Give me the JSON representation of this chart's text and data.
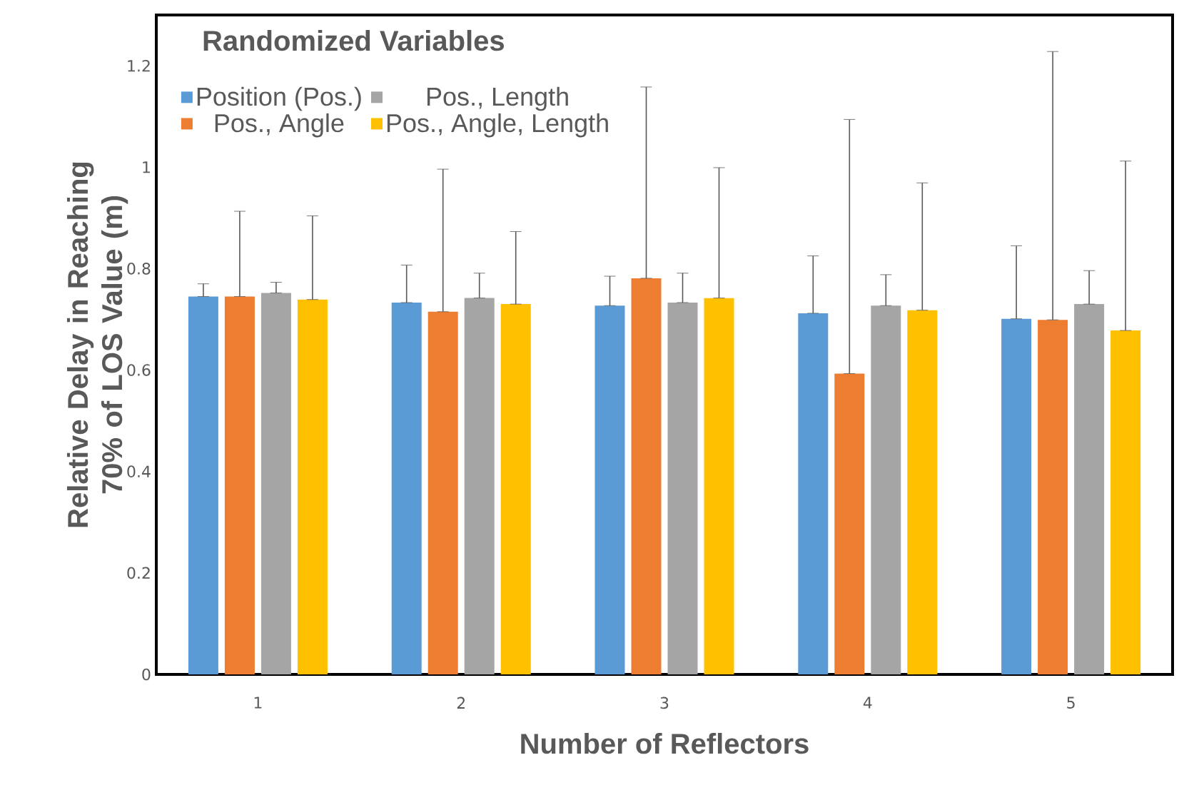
{
  "chart_data": {
    "type": "bar",
    "xlabel": "Number of Reflectors",
    "ylabel": "Relative Delay in Reaching 70% of LOS Value (m)",
    "legend_title": "Randomized Variables",
    "categories": [
      "1",
      "2",
      "3",
      "4",
      "5"
    ],
    "series": [
      {
        "name": "Position (Pos.)",
        "color": "#5b9bd5",
        "values": [
          0.745,
          0.733,
          0.727,
          0.712,
          0.701
        ],
        "errors": [
          [
            0.745,
            0.77
          ],
          [
            0.733,
            0.807
          ],
          [
            0.727,
            0.785
          ],
          [
            0.712,
            0.825
          ],
          [
            0.701,
            0.845
          ]
        ]
      },
      {
        "name": "Pos., Angle",
        "color": "#ed7d31",
        "values": [
          0.745,
          0.715,
          0.781,
          0.593,
          0.699
        ],
        "errors": [
          [
            0.745,
            0.913
          ],
          [
            0.715,
            0.996
          ],
          [
            0.781,
            1.158
          ],
          [
            0.593,
            1.094
          ],
          [
            0.699,
            1.228
          ]
        ]
      },
      {
        "name": "Pos., Length",
        "color": "#a5a5a5",
        "values": [
          0.752,
          0.742,
          0.733,
          0.727,
          0.73
        ],
        "errors": [
          [
            0.752,
            0.773
          ],
          [
            0.742,
            0.791
          ],
          [
            0.733,
            0.791
          ],
          [
            0.727,
            0.788
          ],
          [
            0.73,
            0.796
          ]
        ]
      },
      {
        "name": "Pos., Angle, Length",
        "color": "#ffc000",
        "values": [
          0.739,
          0.73,
          0.742,
          0.718,
          0.678
        ],
        "errors": [
          [
            0.739,
            0.904
          ],
          [
            0.73,
            0.873
          ],
          [
            0.742,
            0.999
          ],
          [
            0.718,
            0.969
          ],
          [
            0.678,
            1.012
          ]
        ]
      }
    ],
    "ylim": [
      0,
      1.3
    ],
    "yticks": [
      0,
      0.2,
      0.4,
      0.6,
      0.8,
      1,
      1.2
    ],
    "grid": false,
    "legend": "top left"
  }
}
